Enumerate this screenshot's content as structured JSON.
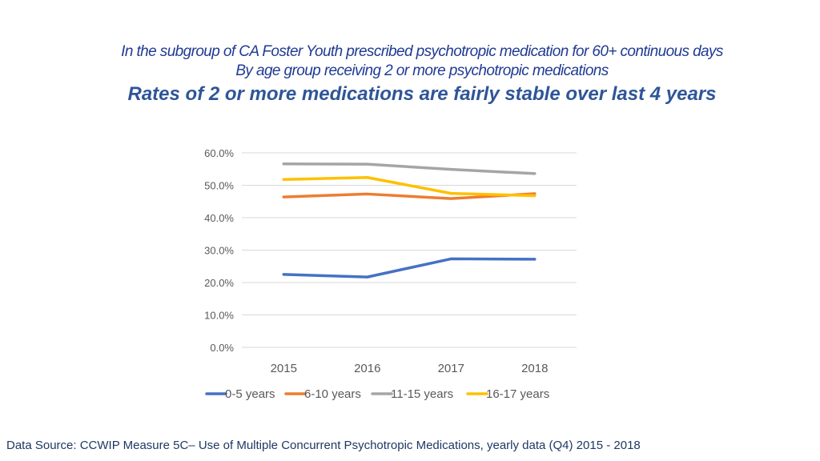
{
  "header": {
    "line1": "In the subgroup of CA Foster Youth prescribed psychotropic medication for 60+ continuous days",
    "line2": "By age group receiving 2 or more psychotropic medications",
    "line3": "Rates of 2 or more medications are fairly stable over last 4 years"
  },
  "footer": {
    "source": "Data Source: CCWIP Measure 5C– Use of Multiple Concurrent Psychotropic Medications, yearly data (Q4) 2015 - 2018"
  },
  "chart_data": {
    "type": "line",
    "title": "",
    "xlabel": "",
    "ylabel": "",
    "categories": [
      "2015",
      "2016",
      "2017",
      "2018"
    ],
    "ylim": [
      0,
      60
    ],
    "yticks": [
      "0.0%",
      "10.0%",
      "20.0%",
      "30.0%",
      "40.0%",
      "50.0%",
      "60.0%"
    ],
    "grid": true,
    "legend_position": "bottom",
    "series": [
      {
        "name": "0-5 years",
        "color": "#4472c4",
        "values": [
          22.5,
          21.7,
          27.3,
          27.2
        ]
      },
      {
        "name": "6-10 years",
        "color": "#ed7d31",
        "values": [
          46.4,
          47.3,
          45.9,
          47.4
        ]
      },
      {
        "name": "11-15 years",
        "color": "#a5a5a5",
        "values": [
          56.6,
          56.5,
          54.9,
          53.6
        ]
      },
      {
        "name": "16-17 years",
        "color": "#ffc000",
        "values": [
          51.8,
          52.4,
          47.5,
          46.8
        ]
      }
    ]
  }
}
